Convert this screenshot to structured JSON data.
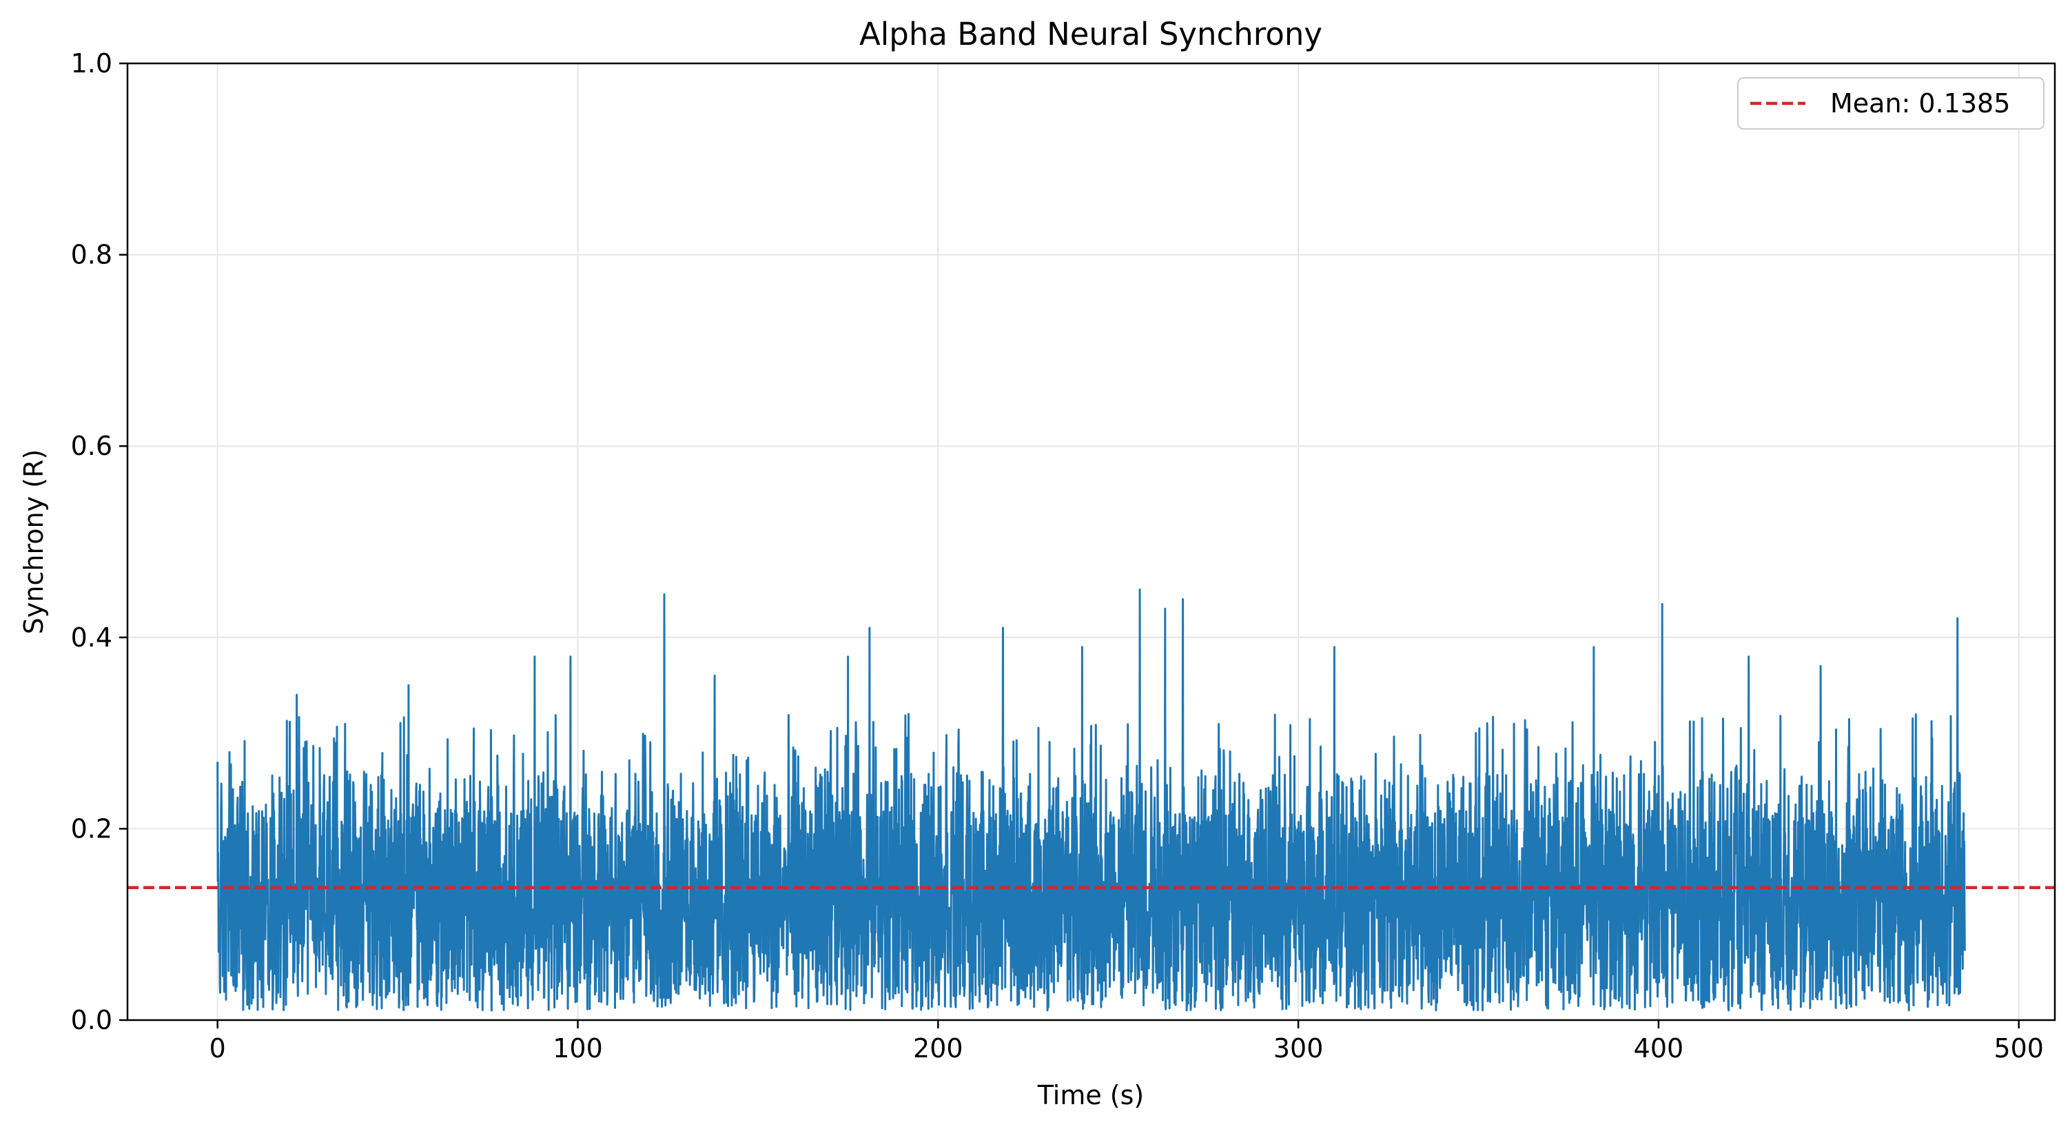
{
  "chart_data": {
    "type": "line",
    "title": "Alpha Band Neural Synchrony",
    "xlabel": "Time (s)",
    "ylabel": "Synchrony (R)",
    "xlim": [
      -25,
      510
    ],
    "ylim": [
      0,
      1.0
    ],
    "xticks": [
      0,
      100,
      200,
      300,
      400,
      500
    ],
    "xtick_labels": [
      "0",
      "100",
      "200",
      "300",
      "400",
      "500"
    ],
    "yticks": [
      0.0,
      0.2,
      0.4,
      0.6,
      0.8,
      1.0
    ],
    "ytick_labels": [
      "0.0",
      "0.2",
      "0.4",
      "0.6",
      "0.8",
      "1.0"
    ],
    "grid": true,
    "legend_position": "top-right",
    "series": [
      {
        "name": "",
        "color": "#1f77b4",
        "x_range": [
          0,
          485
        ],
        "typical_range": [
          0.0,
          0.3
        ],
        "peaks": [
          {
            "x": 0,
            "y": 0.27
          },
          {
            "x": 22,
            "y": 0.34
          },
          {
            "x": 53,
            "y": 0.35
          },
          {
            "x": 88,
            "y": 0.38
          },
          {
            "x": 98,
            "y": 0.38
          },
          {
            "x": 124,
            "y": 0.445
          },
          {
            "x": 138,
            "y": 0.36
          },
          {
            "x": 175,
            "y": 0.38
          },
          {
            "x": 181,
            "y": 0.41
          },
          {
            "x": 218,
            "y": 0.41
          },
          {
            "x": 240,
            "y": 0.39
          },
          {
            "x": 256,
            "y": 0.45
          },
          {
            "x": 263,
            "y": 0.43
          },
          {
            "x": 268,
            "y": 0.44
          },
          {
            "x": 310,
            "y": 0.39
          },
          {
            "x": 382,
            "y": 0.39
          },
          {
            "x": 401,
            "y": 0.435
          },
          {
            "x": 425,
            "y": 0.38
          },
          {
            "x": 445,
            "y": 0.37
          },
          {
            "x": 483,
            "y": 0.42
          }
        ]
      }
    ],
    "reference_lines": [
      {
        "name": "Mean: 0.1385",
        "y": 0.1385,
        "color": "#d62728",
        "style": "dashed"
      }
    ]
  }
}
